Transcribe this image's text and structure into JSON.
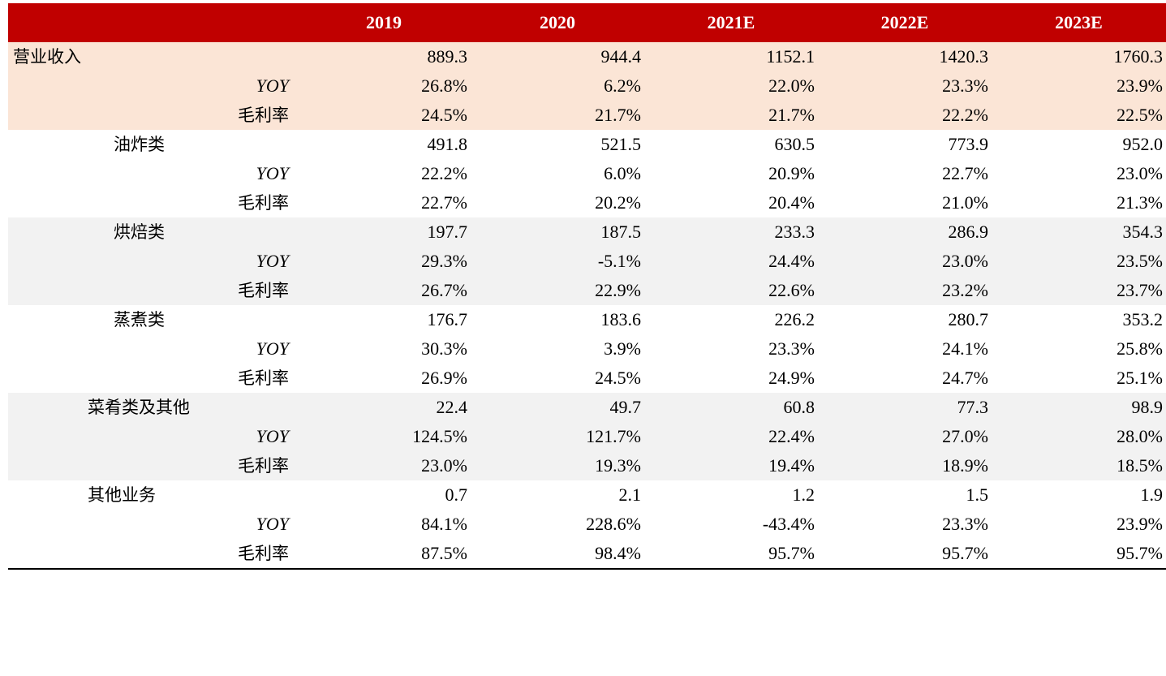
{
  "headers": [
    "",
    "2019",
    "2020",
    "2021E",
    "2022E",
    "2023E"
  ],
  "rows": [
    {
      "label": "营业收入",
      "level": 1,
      "values": [
        "889.3",
        "944.4",
        "1152.1",
        "1420.3",
        "1760.3"
      ]
    },
    {
      "label": "YOY",
      "level": 3,
      "values": [
        "26.8%",
        "6.2%",
        "22.0%",
        "23.3%",
        "23.9%"
      ]
    },
    {
      "label": "毛利率",
      "level": 3,
      "values": [
        "24.5%",
        "21.7%",
        "21.7%",
        "22.2%",
        "22.5%"
      ]
    },
    {
      "label": "油炸类",
      "level": 2,
      "values": [
        "491.8",
        "521.5",
        "630.5",
        "773.9",
        "952.0"
      ]
    },
    {
      "label": "YOY",
      "level": 3,
      "values": [
        "22.2%",
        "6.0%",
        "20.9%",
        "22.7%",
        "23.0%"
      ]
    },
    {
      "label": "毛利率",
      "level": 3,
      "values": [
        "22.7%",
        "20.2%",
        "20.4%",
        "21.0%",
        "21.3%"
      ]
    },
    {
      "label": "烘焙类",
      "level": 2,
      "values": [
        "197.7",
        "187.5",
        "233.3",
        "286.9",
        "354.3"
      ]
    },
    {
      "label": "YOY",
      "level": 3,
      "values": [
        "29.3%",
        "-5.1%",
        "24.4%",
        "23.0%",
        "23.5%"
      ]
    },
    {
      "label": "毛利率",
      "level": 3,
      "values": [
        "26.7%",
        "22.9%",
        "22.6%",
        "23.2%",
        "23.7%"
      ]
    },
    {
      "label": "蒸煮类",
      "level": 2,
      "values": [
        "176.7",
        "183.6",
        "226.2",
        "280.7",
        "353.2"
      ]
    },
    {
      "label": "YOY",
      "level": 3,
      "values": [
        "30.3%",
        "3.9%",
        "23.3%",
        "24.1%",
        "25.8%"
      ]
    },
    {
      "label": "毛利率",
      "level": 3,
      "values": [
        "26.9%",
        "24.5%",
        "24.9%",
        "24.7%",
        "25.1%"
      ]
    },
    {
      "label": "菜肴类及其他",
      "level": 2,
      "values": [
        "22.4",
        "49.7",
        "60.8",
        "77.3",
        "98.9"
      ]
    },
    {
      "label": "YOY",
      "level": 3,
      "values": [
        "124.5%",
        "121.7%",
        "22.4%",
        "27.0%",
        "28.0%"
      ]
    },
    {
      "label": "毛利率",
      "level": 3,
      "values": [
        "23.0%",
        "19.3%",
        "19.4%",
        "18.9%",
        "18.5%"
      ]
    },
    {
      "label": "其他业务",
      "level": 2,
      "values": [
        "0.7",
        "2.1",
        "1.2",
        "1.5",
        "1.9"
      ]
    },
    {
      "label": "YOY",
      "level": 3,
      "values": [
        "84.1%",
        "228.6%",
        "-43.4%",
        "23.3%",
        "23.9%"
      ]
    },
    {
      "label": "毛利率",
      "level": 3,
      "values": [
        "87.5%",
        "98.4%",
        "95.7%",
        "95.7%",
        "95.7%"
      ]
    }
  ],
  "colors": {
    "header_bg": "#c00000",
    "header_text": "#ffffff",
    "peach_band": "#fbe5d6",
    "gray_band": "#f2f2f2",
    "white_band": "#ffffff"
  }
}
